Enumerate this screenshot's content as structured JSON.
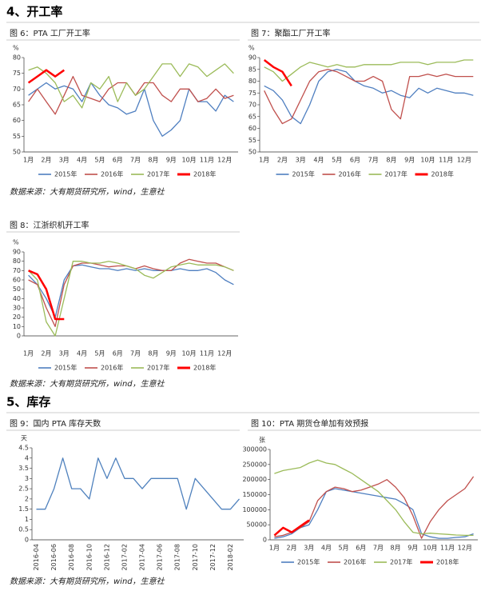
{
  "sections": [
    "4、开工率",
    "5、库存"
  ],
  "sources": [
    "数据来源：大有期货研究所，wind，生意社",
    "数据来源：大有期货研究所，wind，生意社",
    "数据来源：大有期货研究所，wind，生意社"
  ],
  "chart_data": [
    {
      "type": "line",
      "title": "图 6：PTA 工厂开工率",
      "y_label": "%",
      "categories": [
        "1月",
        null,
        "2月",
        null,
        "3月",
        null,
        "4月",
        null,
        "5月",
        null,
        "6月",
        null,
        "7月",
        null,
        "8月",
        null,
        "9月",
        null,
        "10月",
        null,
        "11月",
        null,
        "12月",
        null
      ],
      "ylim": [
        50,
        80
      ],
      "yticks": [
        50,
        55,
        60,
        65,
        70,
        75,
        80
      ],
      "grid": false,
      "series": [
        {
          "name": "2015年",
          "color": "#4f7fc0",
          "values": [
            68,
            70,
            72,
            70,
            71,
            70,
            66,
            72,
            68,
            65,
            64,
            62,
            63,
            70,
            60,
            55,
            57,
            60,
            70,
            66,
            66,
            63,
            68,
            66
          ]
        },
        {
          "name": "2016年",
          "color": "#c0504d",
          "values": [
            66,
            70,
            66,
            62,
            68,
            74,
            68,
            67,
            66,
            70,
            72,
            72,
            68,
            72,
            72,
            68,
            66,
            70,
            70,
            66,
            67,
            70,
            67,
            68
          ]
        },
        {
          "name": "2017年",
          "color": "#9bbb59",
          "values": [
            76,
            77,
            75,
            72,
            66,
            68,
            64,
            72,
            70,
            74,
            66,
            72,
            68,
            70,
            74,
            78,
            78,
            74,
            78,
            77,
            74,
            76,
            78,
            75
          ]
        },
        {
          "name": "2018年",
          "color": "#ff0000",
          "values": [
            72,
            74,
            76,
            74,
            76,
            null,
            null,
            null,
            null,
            null,
            null,
            null,
            null,
            null,
            null,
            null,
            null,
            null,
            null,
            null,
            null,
            null,
            null,
            null
          ]
        }
      ]
    },
    {
      "type": "line",
      "title": "图 7：聚酯工厂开工率",
      "y_label": "%",
      "categories": [
        "1月",
        null,
        "2月",
        null,
        "3月",
        null,
        "4月",
        null,
        "5月",
        null,
        "6月",
        null,
        "7月",
        null,
        "8月",
        null,
        "9月",
        null,
        "10月",
        null,
        "11月",
        null,
        "12月",
        null
      ],
      "ylim": [
        50,
        90
      ],
      "yticks": [
        50,
        55,
        60,
        65,
        70,
        75,
        80,
        85,
        90
      ],
      "grid": false,
      "series": [
        {
          "name": "2015年",
          "color": "#4f7fc0",
          "values": [
            78,
            76,
            72,
            65,
            62,
            70,
            80,
            84,
            85,
            84,
            80,
            78,
            77,
            75,
            76,
            74,
            73,
            77,
            75,
            77,
            76,
            75,
            75,
            74
          ]
        },
        {
          "name": "2016年",
          "color": "#c0504d",
          "values": [
            76,
            68,
            62,
            64,
            72,
            80,
            84,
            85,
            84,
            82,
            80,
            80,
            82,
            80,
            68,
            64,
            82,
            82,
            83,
            82,
            83,
            82,
            82,
            82
          ]
        },
        {
          "name": "2017年",
          "color": "#9bbb59",
          "values": [
            86,
            84,
            80,
            83,
            86,
            88,
            87,
            86,
            87,
            86,
            86,
            87,
            87,
            87,
            87,
            88,
            88,
            88,
            87,
            88,
            88,
            88,
            89,
            89
          ]
        },
        {
          "name": "2018年",
          "color": "#ff0000",
          "values": [
            89,
            86,
            84,
            78,
            null,
            null,
            null,
            null,
            null,
            null,
            null,
            null,
            null,
            null,
            null,
            null,
            null,
            null,
            null,
            null,
            null,
            null,
            null,
            null
          ]
        }
      ]
    },
    {
      "type": "line",
      "title": "图 8：江浙织机开工率",
      "y_label": "%",
      "categories": [
        "1月",
        null,
        "2月",
        null,
        "3月",
        null,
        "4月",
        null,
        "5月",
        null,
        "6月",
        null,
        "7月",
        null,
        "8月",
        null,
        "9月",
        null,
        "10月",
        null,
        "11月",
        null,
        "12月",
        null
      ],
      "ylim": [
        0,
        90
      ],
      "yticks": [
        0,
        10,
        20,
        30,
        40,
        50,
        60,
        70,
        80,
        90
      ],
      "grid": false,
      "series": [
        {
          "name": "2015年",
          "color": "#4f7fc0",
          "values": [
            65,
            55,
            40,
            20,
            60,
            75,
            76,
            74,
            72,
            72,
            70,
            72,
            70,
            72,
            70,
            70,
            70,
            72,
            70,
            70,
            72,
            68,
            60,
            55
          ]
        },
        {
          "name": "2016年",
          "color": "#c0504d",
          "values": [
            60,
            55,
            30,
            10,
            55,
            75,
            78,
            78,
            76,
            74,
            75,
            75,
            72,
            75,
            72,
            70,
            70,
            78,
            82,
            80,
            78,
            78,
            74,
            70
          ]
        },
        {
          "name": "2017年",
          "color": "#9bbb59",
          "values": [
            70,
            60,
            15,
            0,
            40,
            80,
            80,
            78,
            78,
            80,
            78,
            75,
            72,
            65,
            62,
            68,
            74,
            76,
            78,
            76,
            76,
            76,
            74,
            70
          ]
        },
        {
          "name": "2018年",
          "color": "#ff0000",
          "values": [
            70,
            66,
            50,
            18,
            18,
            null,
            null,
            null,
            null,
            null,
            null,
            null,
            null,
            null,
            null,
            null,
            null,
            null,
            null,
            null,
            null,
            null,
            null,
            null
          ]
        }
      ]
    },
    {
      "type": "line",
      "title": "图 9：国内 PTA 库存天数",
      "y_label": "天",
      "categories": [
        "2016-04",
        null,
        "2016-06",
        null,
        "2016-08",
        null,
        "2016-10",
        null,
        "2016-12",
        null,
        "2017-02",
        null,
        "2017-04",
        null,
        "2017-06",
        null,
        "2017-08",
        null,
        "2017-10",
        null,
        "2017-12",
        null,
        "2018-02",
        null
      ],
      "ylim": [
        0,
        4.5
      ],
      "yticks": [
        0,
        0.5,
        1,
        1.5,
        2,
        2.5,
        3,
        3.5,
        4,
        4.5
      ],
      "grid": false,
      "series": [
        {
          "color": "#4f81bd",
          "values": [
            1.5,
            1.5,
            2.5,
            4,
            2.5,
            2.5,
            2,
            4,
            3,
            4,
            3,
            3,
            2.5,
            3,
            3,
            3,
            3,
            1.5,
            3,
            2.5,
            2,
            1.5,
            1.5,
            2
          ]
        }
      ]
    },
    {
      "type": "line",
      "title": "图 10：PTA 期货仓单加有效预报",
      "y_label": "张",
      "categories": [
        "1月",
        null,
        "2月",
        null,
        "3月",
        null,
        "4月",
        null,
        "5月",
        null,
        "6月",
        null,
        "7月",
        null,
        "8月",
        null,
        "9月",
        null,
        "10月",
        null,
        "11月",
        null,
        "12月",
        null
      ],
      "ylim": [
        0,
        300000
      ],
      "yticks": [
        0,
        50000,
        100000,
        150000,
        200000,
        250000,
        300000
      ],
      "grid": false,
      "series": [
        {
          "name": "2015年",
          "color": "#4f7fc0",
          "values": [
            5000,
            10000,
            20000,
            40000,
            50000,
            100000,
            160000,
            170000,
            165000,
            160000,
            155000,
            150000,
            145000,
            140000,
            135000,
            120000,
            100000,
            20000,
            10000,
            5000,
            5000,
            8000,
            10000,
            20000
          ]
        },
        {
          "name": "2016年",
          "color": "#c0504d",
          "values": [
            10000,
            15000,
            25000,
            40000,
            60000,
            130000,
            160000,
            175000,
            170000,
            160000,
            165000,
            175000,
            185000,
            200000,
            175000,
            140000,
            80000,
            5000,
            60000,
            100000,
            130000,
            150000,
            170000,
            210000
          ]
        },
        {
          "name": "2017年",
          "color": "#9bbb59",
          "values": [
            220000,
            230000,
            235000,
            240000,
            255000,
            265000,
            255000,
            250000,
            235000,
            220000,
            200000,
            180000,
            160000,
            130000,
            100000,
            60000,
            25000,
            20000,
            22000,
            20000,
            18000,
            16000,
            15000,
            15000
          ]
        },
        {
          "name": "2018年",
          "color": "#ff0000",
          "values": [
            15000,
            40000,
            25000,
            45000,
            65000,
            null,
            null,
            null,
            null,
            null,
            null,
            null,
            null,
            null,
            null,
            null,
            null,
            null,
            null,
            null,
            null,
            null,
            null,
            null
          ]
        }
      ]
    }
  ]
}
